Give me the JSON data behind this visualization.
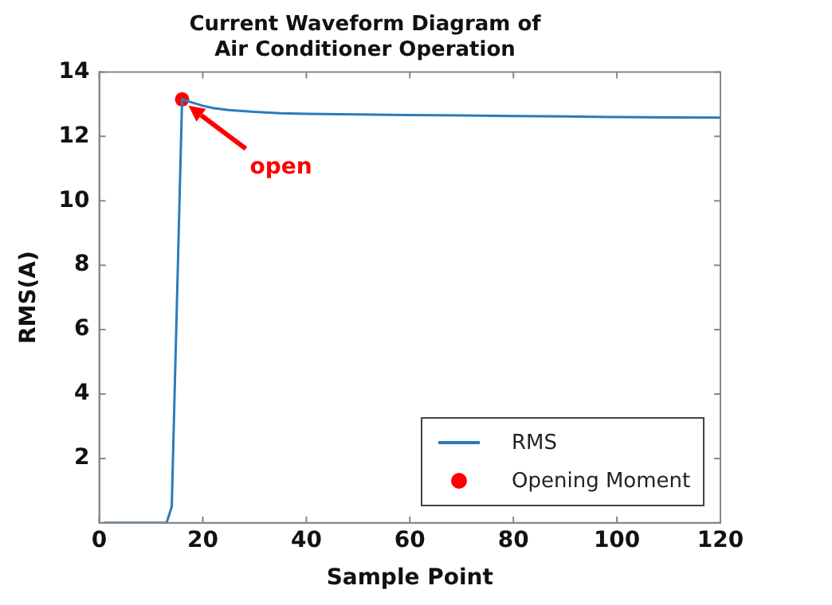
{
  "chart_data": {
    "type": "line",
    "title": "Current Waveform Diagram of Air Conditioner Operation",
    "xlabel": "Sample Point",
    "ylabel": "RMS(A)",
    "xlim": [
      0,
      120
    ],
    "xticks": [
      0,
      20,
      40,
      60,
      80,
      100,
      120
    ],
    "ylim": [
      0,
      14
    ],
    "yticks": [
      {
        "value": 0,
        "label": null
      },
      2,
      4,
      6,
      8,
      10,
      12,
      14
    ],
    "grid": false,
    "legend": "bottom right",
    "series": [
      {
        "name": "RMS",
        "color": "#2b7bba",
        "marker": "none",
        "x": [
          1,
          13,
          14,
          16,
          18,
          20,
          22,
          25,
          30,
          35,
          40,
          50,
          60,
          70,
          80,
          90,
          100,
          110,
          120
        ],
        "values": [
          0,
          0,
          0.5,
          13.15,
          13.05,
          12.95,
          12.88,
          12.82,
          12.76,
          12.72,
          12.7,
          12.68,
          12.66,
          12.65,
          12.63,
          12.62,
          12.6,
          12.59,
          12.58
        ]
      },
      {
        "name": "Opening Moment",
        "type": "scatter",
        "color": "#ff0000",
        "marker": "circle",
        "x": [
          16
        ],
        "values": [
          13.15
        ]
      }
    ],
    "annotations": [
      "open"
    ]
  }
}
